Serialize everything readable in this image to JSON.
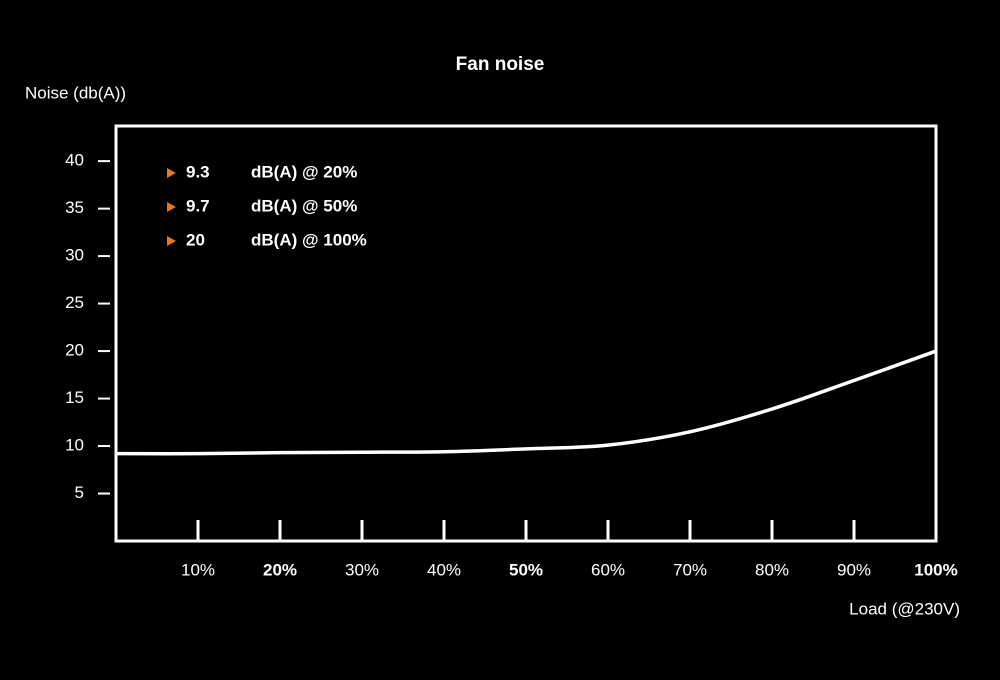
{
  "chart_data": {
    "type": "line",
    "title": "Fan noise",
    "y_label": "Noise (db(A))",
    "x_label": "Load (@230V)",
    "x": [
      0,
      10,
      20,
      30,
      40,
      50,
      60,
      70,
      80,
      90,
      100
    ],
    "series": [
      {
        "name": "Fan noise",
        "color": "#ffffff",
        "values": [
          9.2,
          9.2,
          9.3,
          9.35,
          9.4,
          9.7,
          10.1,
          11.5,
          13.9,
          16.9,
          20
        ]
      }
    ],
    "xlim": [
      0,
      100
    ],
    "ylim": [
      0,
      43.7
    ],
    "xticks": [
      {
        "value": 10,
        "label": "10%"
      },
      {
        "value": 20,
        "label": "20%",
        "bold": true
      },
      {
        "value": 30,
        "label": "30%"
      },
      {
        "value": 40,
        "label": "40%"
      },
      {
        "value": 50,
        "label": "50%",
        "bold": true
      },
      {
        "value": 60,
        "label": "60%"
      },
      {
        "value": 70,
        "label": "70%"
      },
      {
        "value": 80,
        "label": "80%"
      },
      {
        "value": 90,
        "label": "90%"
      },
      {
        "value": 100,
        "label": "100%",
        "bold": true
      }
    ],
    "yticks": [
      5,
      10,
      15,
      20,
      25,
      30,
      35,
      40
    ],
    "grid": true,
    "annotations": [
      {
        "value": 9.3,
        "label": "dB(A) @ 20%",
        "marker_color": "#e87722"
      },
      {
        "value": 9.7,
        "label": "dB(A) @ 50%",
        "marker_color": "#e87722"
      },
      {
        "value": 20,
        "label": "dB(A) @ 100%",
        "marker_color": "#e87722"
      }
    ]
  }
}
